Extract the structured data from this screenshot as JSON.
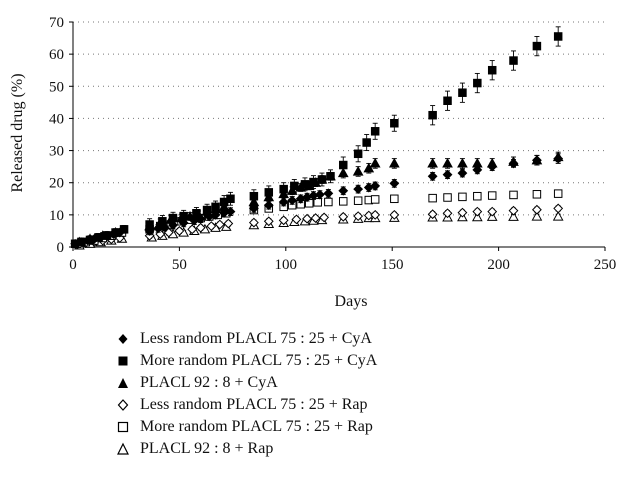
{
  "chart_data": {
    "type": "scatter",
    "title": "",
    "xlabel": "Days",
    "ylabel": "Released drug (%)",
    "xlim": [
      0,
      250
    ],
    "ylim": [
      0,
      70
    ],
    "xticks": [
      0,
      50,
      100,
      150,
      200,
      250
    ],
    "yticks": [
      0,
      10,
      20,
      30,
      40,
      50,
      60,
      70
    ],
    "grid": "horizontal dotted",
    "legend_position": "bottom",
    "series": [
      {
        "name": "Less random PLACL 75 : 25 + CyA",
        "marker": "diamond-filled",
        "x": [
          1,
          4,
          7,
          10,
          13,
          16,
          19,
          22,
          36,
          40,
          43,
          47,
          52,
          57,
          60,
          64,
          67,
          71,
          74,
          85,
          92,
          99,
          103,
          107,
          110,
          113,
          116,
          120,
          127,
          134,
          139,
          142,
          151,
          169,
          176,
          183,
          190,
          197,
          207,
          218,
          228
        ],
        "y": [
          1,
          1.5,
          2,
          2.5,
          3,
          3.5,
          4,
          4.5,
          5,
          5.8,
          6.2,
          6.8,
          7.5,
          8.2,
          8.8,
          9.5,
          10,
          10.6,
          11,
          12,
          13,
          14,
          14.5,
          15,
          15.5,
          16,
          16.3,
          16.7,
          17.5,
          18,
          18.5,
          19,
          19.8,
          22,
          22.5,
          23,
          24,
          25,
          26,
          27,
          27.5
        ],
        "err": [
          0.8,
          0.8,
          0.8,
          0.8,
          0.8,
          0.8,
          0.8,
          0.8,
          1.2,
          1.2,
          1.2,
          1.2,
          1.2,
          1.2,
          1.2,
          1.2,
          1.2,
          1.2,
          1.2,
          1.2,
          1.2,
          1.2,
          1.2,
          1.2,
          1.2,
          1.2,
          1.2,
          1.2,
          1.2,
          1.2,
          1.2,
          1.2,
          1.2,
          1.2,
          1.2,
          1.2,
          1.2,
          1.2,
          1.2,
          1.5,
          1.5
        ]
      },
      {
        "name": "More random PLACL 75 : 25 + CyA",
        "marker": "square-filled",
        "x": [
          1,
          4,
          8,
          12,
          16,
          20,
          24,
          36,
          42,
          47,
          52,
          58,
          63,
          67,
          71,
          74,
          85,
          92,
          99,
          104,
          109,
          113,
          117,
          121,
          127,
          134,
          138,
          142,
          151,
          169,
          176,
          183,
          190,
          197,
          207,
          218,
          228
        ],
        "y": [
          1,
          1.6,
          2.2,
          3,
          3.6,
          4.5,
          5.5,
          7,
          8,
          9,
          9.6,
          10.5,
          11.5,
          12.5,
          14,
          15,
          15.8,
          17,
          18,
          19,
          19.5,
          20.2,
          21,
          22,
          25.5,
          29,
          32.5,
          36,
          38.5,
          41,
          45.5,
          48,
          51,
          55,
          58,
          62.5,
          65.5
        ],
        "err": [
          1.2,
          1.2,
          1.2,
          1.2,
          1.2,
          1.2,
          1.2,
          1.8,
          1.8,
          1.8,
          1.8,
          1.8,
          1.8,
          1.8,
          2,
          2,
          2,
          2,
          2,
          2,
          2,
          2,
          2,
          2,
          2.5,
          2.5,
          2.5,
          2.5,
          2.5,
          3,
          3,
          3,
          3,
          3,
          3,
          3,
          3
        ]
      },
      {
        "name": "PLACL 92 : 8 + CyA",
        "marker": "triangle-filled",
        "x": [
          3,
          8,
          14,
          20,
          36,
          41,
          46,
          51,
          55,
          59,
          63,
          67,
          71,
          85,
          92,
          99,
          103,
          107,
          111,
          114,
          117,
          121,
          127,
          134,
          139,
          142,
          151,
          169,
          176,
          183,
          190,
          197,
          207,
          218,
          228
        ],
        "y": [
          1.5,
          2.5,
          3.5,
          4.5,
          6.5,
          7.5,
          8.5,
          9,
          9.5,
          10,
          11,
          11.8,
          12.5,
          14,
          15.5,
          16.5,
          17.5,
          18.5,
          19,
          20,
          21,
          22,
          23,
          23.5,
          24.5,
          26,
          26,
          26,
          26,
          26,
          26,
          26,
          26.5,
          27,
          28
        ],
        "err": [
          1,
          1,
          1,
          1,
          1.2,
          1.2,
          1.2,
          1.2,
          1.2,
          1.2,
          1.2,
          1.2,
          1.2,
          1.2,
          1.2,
          1.2,
          1.2,
          1.2,
          1.2,
          1.2,
          1.2,
          1.2,
          1.5,
          1.5,
          1.5,
          1.5,
          1.5,
          1.5,
          1.5,
          1.5,
          1.5,
          1.5,
          1.5,
          1.5,
          1.5
        ]
      },
      {
        "name": "Less random PLACL 75 : 25 + Rap",
        "marker": "diamond-open",
        "x": [
          2,
          6,
          10,
          14,
          18,
          22,
          36,
          41,
          45,
          50,
          56,
          60,
          65,
          69,
          73,
          85,
          92,
          99,
          105,
          110,
          114,
          118,
          127,
          134,
          139,
          142,
          151,
          169,
          176,
          183,
          190,
          197,
          207,
          218,
          228
        ],
        "y": [
          0.8,
          1.2,
          1.6,
          2,
          2.4,
          2.8,
          3.5,
          4,
          4.5,
          5,
          5.5,
          6,
          6.5,
          7,
          7.3,
          7.6,
          8,
          8.3,
          8.6,
          8.8,
          9,
          9.2,
          9.4,
          9.6,
          9.8,
          10,
          10,
          10.2,
          10.5,
          10.7,
          11,
          11,
          11.3,
          11.6,
          12
        ],
        "err": [
          0.6,
          0.6,
          0.6,
          0.6,
          0.6,
          0.6,
          0.8,
          0.8,
          0.8,
          0.8,
          0.8,
          0.8,
          0.8,
          0.8,
          0.8,
          0.8,
          0.8,
          0.8,
          0.8,
          0.8,
          0.8,
          0.8,
          0.8,
          0.8,
          0.8,
          0.8,
          0.8,
          0.8,
          0.8,
          0.8,
          0.8,
          0.8,
          0.8,
          0.8,
          0.8
        ]
      },
      {
        "name": "More random PLACL 75 : 25 + Rap",
        "marker": "square-open",
        "x": [
          2,
          6,
          10,
          14,
          18,
          23,
          36,
          41,
          46,
          51,
          55,
          60,
          64,
          68,
          72,
          85,
          92,
          99,
          103,
          107,
          111,
          115,
          120,
          127,
          134,
          139,
          142,
          151,
          169,
          176,
          183,
          190,
          197,
          207,
          218,
          228
        ],
        "y": [
          1,
          1.5,
          2,
          2.8,
          3.5,
          4.5,
          5.5,
          6.5,
          7,
          8,
          8.5,
          9,
          9.5,
          10,
          10.5,
          11.5,
          12,
          12.5,
          13,
          13.3,
          13.6,
          13.9,
          14,
          14.2,
          14.4,
          14.6,
          14.8,
          15,
          15.2,
          15.4,
          15.6,
          15.8,
          16,
          16.2,
          16.4,
          16.6
        ],
        "err": [
          0.8,
          0.8,
          0.8,
          0.8,
          0.8,
          0.8,
          1,
          1,
          1,
          1,
          1,
          1,
          1,
          1,
          1,
          1,
          1,
          1,
          1,
          1,
          1,
          1,
          1,
          1,
          1,
          1,
          1,
          1,
          1,
          1,
          1,
          1,
          1,
          1,
          1,
          1
        ]
      },
      {
        "name": "PLACL 92 : 8 + Rap",
        "marker": "triangle-open",
        "x": [
          3,
          8,
          13,
          18,
          23,
          37,
          42,
          47,
          52,
          57,
          62,
          67,
          72,
          85,
          92,
          99,
          104,
          109,
          113,
          117,
          127,
          134,
          139,
          142,
          151,
          169,
          176,
          183,
          190,
          197,
          207,
          218,
          228
        ],
        "y": [
          0.5,
          1,
          1.5,
          2,
          2.6,
          3,
          3.5,
          4,
          4.5,
          5,
          5.5,
          6,
          6.3,
          6.8,
          7.2,
          7.5,
          7.8,
          8,
          8.2,
          8.4,
          8.6,
          8.8,
          9,
          9,
          9.1,
          9.2,
          9.2,
          9.3,
          9.3,
          9.4,
          9.4,
          9.5,
          9.5
        ],
        "err": [
          0.6,
          0.6,
          0.6,
          0.6,
          0.6,
          0.7,
          0.7,
          0.7,
          0.7,
          0.7,
          0.7,
          0.7,
          0.7,
          0.7,
          0.7,
          0.7,
          0.7,
          0.7,
          0.7,
          0.7,
          0.7,
          0.7,
          0.7,
          0.7,
          0.7,
          0.7,
          0.7,
          0.7,
          0.7,
          0.7,
          0.7,
          0.7,
          0.7
        ]
      }
    ]
  }
}
